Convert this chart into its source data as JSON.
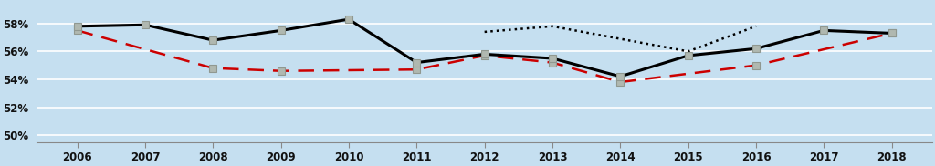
{
  "years": [
    2006,
    2007,
    2008,
    2009,
    2010,
    2011,
    2012,
    2013,
    2014,
    2015,
    2016,
    2017,
    2018
  ],
  "solid_line": [
    57.8,
    57.9,
    56.8,
    57.5,
    58.3,
    55.2,
    55.8,
    55.5,
    54.2,
    55.7,
    56.2,
    57.5,
    57.3
  ],
  "dashed_line": [
    57.5,
    null,
    54.8,
    54.6,
    null,
    54.7,
    55.7,
    55.2,
    53.8,
    null,
    55.0,
    null,
    57.3
  ],
  "dotted_line": [
    null,
    null,
    null,
    null,
    null,
    null,
    57.4,
    57.8,
    null,
    56.0,
    57.8,
    null,
    null
  ],
  "background_color": "#c5dff0",
  "plot_bg_color": "#c5dff0",
  "grid_color": "#ffffff",
  "solid_color": "#000000",
  "dashed_color": "#cc0000",
  "dotted_color": "#000000",
  "ylim": [
    49.5,
    59.5
  ],
  "yticks": [
    50,
    52,
    54,
    56,
    58
  ],
  "ytick_labels": [
    "50%",
    "52%",
    "54%",
    "56%",
    "58%"
  ],
  "marker_color": "#b0b8b0",
  "marker_edge_color": "#909890",
  "xlim_left": 2005.4,
  "xlim_right": 2018.6
}
